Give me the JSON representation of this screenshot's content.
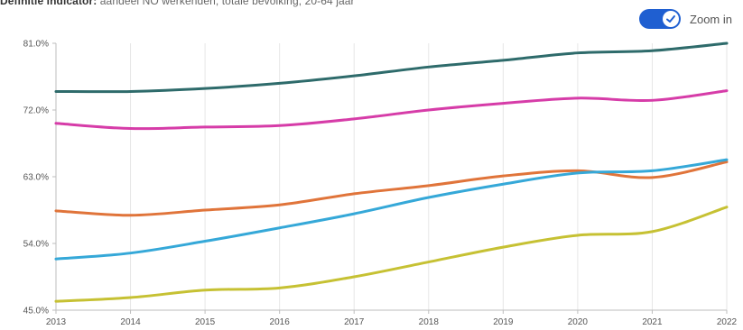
{
  "header": {
    "indicator_label": "Definitie indicator:",
    "indicator_text": "aandeel NO werkenden, totale bevolking, 20-64 jaar"
  },
  "zoom_toggle": {
    "label": "Zoom in",
    "on": true,
    "color": "#1f5fd1"
  },
  "chart_data": {
    "type": "line",
    "x": [
      "2013",
      "2014",
      "2015",
      "2016",
      "2017",
      "2018",
      "2019",
      "2020",
      "2021",
      "2022"
    ],
    "ylim": [
      45,
      80
    ],
    "y_ticks": [
      "45.0%",
      "54.0%",
      "63.0%",
      "72.0%",
      "81.0%"
    ],
    "y_tick_values": [
      45,
      54,
      63,
      72,
      81
    ],
    "grid": "vertical",
    "legend": "none",
    "series": [
      {
        "color": "#2e6b6b",
        "values": [
          74.5,
          74.5,
          74.9,
          75.6,
          76.6,
          77.8,
          78.7,
          79.7,
          80.0,
          81.0
        ]
      },
      {
        "color": "#d63ca8",
        "values": [
          70.2,
          69.5,
          69.7,
          69.9,
          70.8,
          72.0,
          72.9,
          73.6,
          73.3,
          74.6
        ]
      },
      {
        "color": "#e0743a",
        "values": [
          58.4,
          57.8,
          58.5,
          59.2,
          60.7,
          61.8,
          63.1,
          63.8,
          62.9,
          65.0
        ]
      },
      {
        "color": "#35a8d8",
        "values": [
          51.9,
          52.7,
          54.3,
          56.1,
          58.0,
          60.2,
          62.0,
          63.5,
          63.8,
          65.3
        ]
      },
      {
        "color": "#c6c133",
        "values": [
          46.2,
          46.7,
          47.7,
          48.0,
          49.5,
          51.5,
          53.5,
          55.1,
          55.6,
          58.9
        ]
      }
    ]
  }
}
